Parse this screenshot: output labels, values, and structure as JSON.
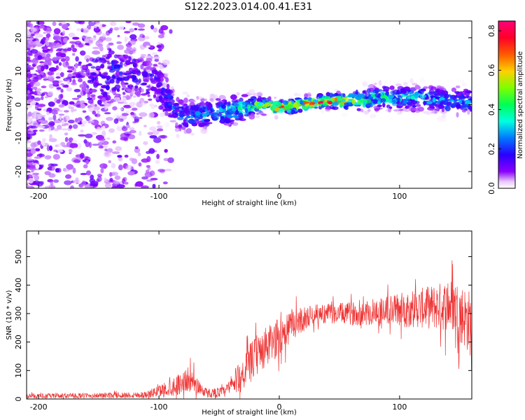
{
  "figure": {
    "title": "S122.2023.014.00.41.E31"
  },
  "chart_data": [
    {
      "type": "heatmap",
      "xlabel": "Height of straight line (km)",
      "ylabel": "Frequency (Hz)",
      "xlim": [
        -210,
        160
      ],
      "ylim": [
        -25,
        25
      ],
      "xticks": [
        -200,
        -100,
        0,
        100
      ],
      "yticks": [
        -20,
        -10,
        0,
        10,
        20
      ],
      "colorbar": {
        "label": "Normalized spectral amplitude",
        "range": [
          0.0,
          0.85
        ],
        "ticks": [
          0.0,
          0.2,
          0.4,
          0.6,
          0.8
        ],
        "colormap": "gist_rainbow_r"
      },
      "ridge": [
        {
          "x": -200,
          "y": 12,
          "spread": 14,
          "amp": 0.1
        },
        {
          "x": -160,
          "y": 8,
          "spread": 10,
          "amp": 0.14
        },
        {
          "x": -140,
          "y": 10,
          "spread": 6,
          "amp": 0.2
        },
        {
          "x": -120,
          "y": 9,
          "spread": 5,
          "amp": 0.16
        },
        {
          "x": -100,
          "y": 6,
          "spread": 4,
          "amp": 0.18
        },
        {
          "x": -85,
          "y": -3,
          "spread": 3,
          "amp": 0.25
        },
        {
          "x": -60,
          "y": -3,
          "spread": 2.5,
          "amp": 0.3
        },
        {
          "x": -40,
          "y": -2,
          "spread": 2.5,
          "amp": 0.35
        },
        {
          "x": -20,
          "y": 0,
          "spread": 1.5,
          "amp": 0.5
        },
        {
          "x": 0,
          "y": -1,
          "spread": 1.2,
          "amp": 0.7
        },
        {
          "x": 20,
          "y": 0,
          "spread": 1.2,
          "amp": 0.65
        },
        {
          "x": 35,
          "y": 1,
          "spread": 1.0,
          "amp": 0.85
        },
        {
          "x": 60,
          "y": 1,
          "spread": 1.5,
          "amp": 0.55
        },
        {
          "x": 80,
          "y": 2,
          "spread": 2.0,
          "amp": 0.4
        },
        {
          "x": 100,
          "y": 2,
          "spread": 2.0,
          "amp": 0.4
        },
        {
          "x": 120,
          "y": 2,
          "spread": 2.0,
          "amp": 0.35
        },
        {
          "x": 140,
          "y": 1,
          "spread": 2.2,
          "amp": 0.3
        },
        {
          "x": 160,
          "y": 1,
          "spread": 2.2,
          "amp": 0.3
        }
      ]
    },
    {
      "type": "line",
      "xlabel": "Height of straight line (km)",
      "ylabel": "SNR (10 * v/v)",
      "xlim": [
        -210,
        160
      ],
      "ylim": [
        0,
        590
      ],
      "xticks": [
        -200,
        -100,
        0,
        100
      ],
      "yticks": [
        0,
        100,
        200,
        300,
        400,
        500
      ],
      "series": [
        {
          "color": "#ee3333",
          "envelope": [
            {
              "x": -210,
              "mean": 10,
              "noise": 10
            },
            {
              "x": -150,
              "mean": 12,
              "noise": 12
            },
            {
              "x": -110,
              "mean": 15,
              "noise": 15
            },
            {
              "x": -90,
              "mean": 40,
              "noise": 40
            },
            {
              "x": -75,
              "mean": 70,
              "noise": 55
            },
            {
              "x": -60,
              "mean": 20,
              "noise": 20
            },
            {
              "x": -45,
              "mean": 25,
              "noise": 25
            },
            {
              "x": -30,
              "mean": 90,
              "noise": 80
            },
            {
              "x": -20,
              "mean": 150,
              "noise": 90
            },
            {
              "x": -5,
              "mean": 200,
              "noise": 90
            },
            {
              "x": 10,
              "mean": 260,
              "noise": 70
            },
            {
              "x": 30,
              "mean": 300,
              "noise": 40
            },
            {
              "x": 60,
              "mean": 300,
              "noise": 50
            },
            {
              "x": 90,
              "mean": 310,
              "noise": 70
            },
            {
              "x": 120,
              "mean": 320,
              "noise": 90
            },
            {
              "x": 145,
              "mean": 330,
              "noise": 120
            },
            {
              "x": 160,
              "mean": 260,
              "noise": 150
            }
          ]
        }
      ]
    }
  ]
}
